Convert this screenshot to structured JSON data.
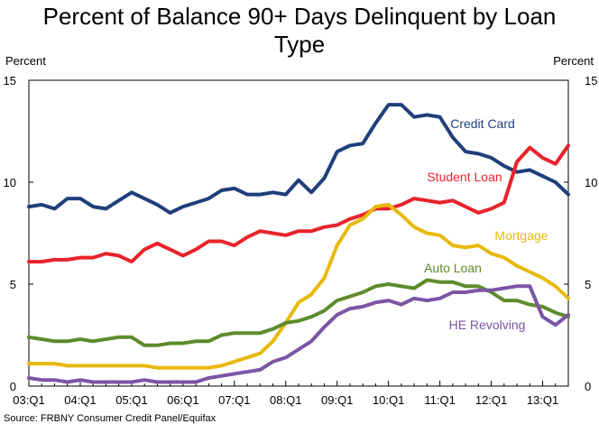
{
  "chart_data": {
    "type": "line",
    "title": "Percent of Balance 90+ Days Delinquent by Loan Type",
    "title_lines": [
      "Percent of Balance 90+ Days Delinquent by Loan",
      "Type"
    ],
    "ylabel_left": "Percent",
    "ylabel_right": "Percent",
    "source": "Source: FRBNY Consumer Credit Panel/Equifax",
    "ylim": [
      0,
      15
    ],
    "yticks": [
      0,
      5,
      10,
      15
    ],
    "ytick_labels": [
      "0",
      "5",
      "10",
      "15"
    ],
    "x_start": "03:Q1",
    "x_end": "13:Q2",
    "xtick_labels": [
      "03:Q1",
      "04:Q1",
      "05:Q1",
      "06:Q1",
      "07:Q1",
      "08:Q1",
      "09:Q1",
      "10:Q1",
      "11:Q1",
      "12:Q1",
      "13:Q1"
    ],
    "grid": false,
    "series": [
      {
        "name": "Credit Card",
        "color": "#1f3f7a",
        "values": [
          8.8,
          8.9,
          8.7,
          9.2,
          9.2,
          8.8,
          8.7,
          9.1,
          9.5,
          9.2,
          8.9,
          8.5,
          8.8,
          9.0,
          9.2,
          9.6,
          9.7,
          9.4,
          9.4,
          9.5,
          9.4,
          10.1,
          9.5,
          10.2,
          11.5,
          11.8,
          11.9,
          12.9,
          13.8,
          13.8,
          13.2,
          13.3,
          13.2,
          12.2,
          11.5,
          11.4,
          11.2,
          10.8,
          10.5,
          10.6,
          10.3,
          10.0,
          9.4
        ]
      },
      {
        "name": "Student Loan",
        "color": "#e8232a",
        "values": [
          6.1,
          6.1,
          6.2,
          6.2,
          6.3,
          6.3,
          6.5,
          6.4,
          6.1,
          6.7,
          7.0,
          6.7,
          6.4,
          6.7,
          7.1,
          7.1,
          6.9,
          7.3,
          7.6,
          7.5,
          7.4,
          7.6,
          7.6,
          7.8,
          7.9,
          8.2,
          8.4,
          8.7,
          8.7,
          8.9,
          9.2,
          9.1,
          9.0,
          9.1,
          8.8,
          8.5,
          8.7,
          9.0,
          11.0,
          11.7,
          11.2,
          10.9,
          11.8
        ]
      },
      {
        "name": "Mortgage",
        "color": "#e8b90c",
        "values": [
          1.1,
          1.1,
          1.1,
          1.0,
          1.0,
          1.0,
          1.0,
          1.0,
          1.0,
          1.0,
          0.9,
          0.9,
          0.9,
          0.9,
          0.9,
          1.0,
          1.2,
          1.4,
          1.6,
          2.2,
          3.1,
          4.1,
          4.5,
          5.3,
          6.9,
          7.9,
          8.2,
          8.8,
          8.9,
          8.4,
          7.8,
          7.5,
          7.4,
          6.9,
          6.8,
          6.9,
          6.5,
          6.3,
          5.9,
          5.6,
          5.3,
          4.9,
          4.3
        ]
      },
      {
        "name": "Auto Loan",
        "color": "#5e8b2b",
        "values": [
          2.4,
          2.3,
          2.2,
          2.2,
          2.3,
          2.2,
          2.3,
          2.4,
          2.4,
          2.0,
          2.0,
          2.1,
          2.1,
          2.2,
          2.2,
          2.5,
          2.6,
          2.6,
          2.6,
          2.8,
          3.1,
          3.2,
          3.4,
          3.7,
          4.2,
          4.4,
          4.6,
          4.9,
          5.0,
          4.9,
          4.8,
          5.2,
          5.1,
          5.1,
          4.9,
          4.9,
          4.6,
          4.2,
          4.2,
          4.0,
          3.9,
          3.6,
          3.4
        ]
      },
      {
        "name": "HE Revolving",
        "color": "#7b55a4",
        "values": [
          0.4,
          0.3,
          0.3,
          0.2,
          0.3,
          0.2,
          0.2,
          0.2,
          0.2,
          0.3,
          0.2,
          0.2,
          0.2,
          0.2,
          0.4,
          0.5,
          0.6,
          0.7,
          0.8,
          1.2,
          1.4,
          1.8,
          2.2,
          2.9,
          3.5,
          3.8,
          3.9,
          4.1,
          4.2,
          4.0,
          4.3,
          4.2,
          4.3,
          4.6,
          4.6,
          4.7,
          4.7,
          4.8,
          4.9,
          4.9,
          3.4,
          3.0,
          3.5
        ]
      }
    ]
  }
}
